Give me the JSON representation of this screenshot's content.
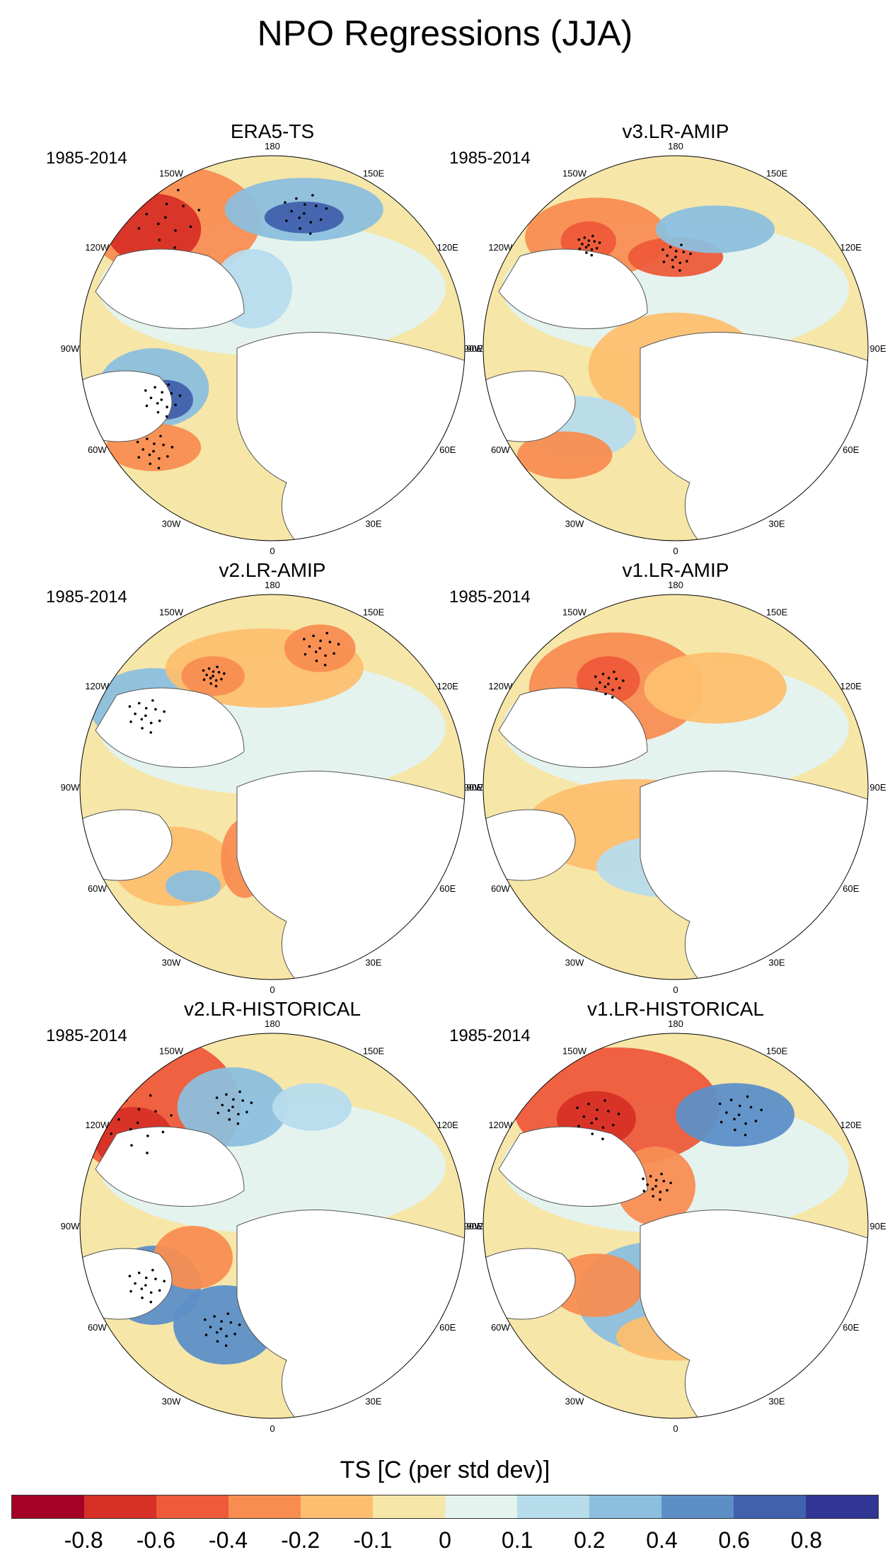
{
  "figure": {
    "title": "NPO Regressions (JJA)"
  },
  "panels": [
    {
      "title": "ERA5-TS",
      "period": "1985-2014"
    },
    {
      "title": "v3.LR-AMIP",
      "period": "1985-2014"
    },
    {
      "title": "v2.LR-AMIP",
      "period": "1985-2014"
    },
    {
      "title": "v1.LR-AMIP",
      "period": "1985-2014"
    },
    {
      "title": "v2.LR-HISTORICAL",
      "period": "1985-2014"
    },
    {
      "title": "v1.LR-HISTORICAL",
      "period": "1985-2014"
    }
  ],
  "longitude_labels": [
    "180",
    "150E",
    "120E",
    "90E",
    "60E",
    "30E",
    "0",
    "30W",
    "60W",
    "90W",
    "120W",
    "150W"
  ],
  "colorbar": {
    "title": "TS [C (per std dev)]",
    "tick_labels": [
      "-0.8",
      "-0.6",
      "-0.4",
      "-0.2",
      "-0.1",
      "0",
      "0.1",
      "0.2",
      "0.4",
      "0.6",
      "0.8"
    ],
    "colors": [
      "#a50026",
      "#d73027",
      "#ee5a3a",
      "#f88d52",
      "#fdbf6f",
      "#f6e6a8",
      "#e4f3ee",
      "#b7dcec",
      "#8cbfdd",
      "#5d8fc7",
      "#4161ad",
      "#313695"
    ]
  }
}
